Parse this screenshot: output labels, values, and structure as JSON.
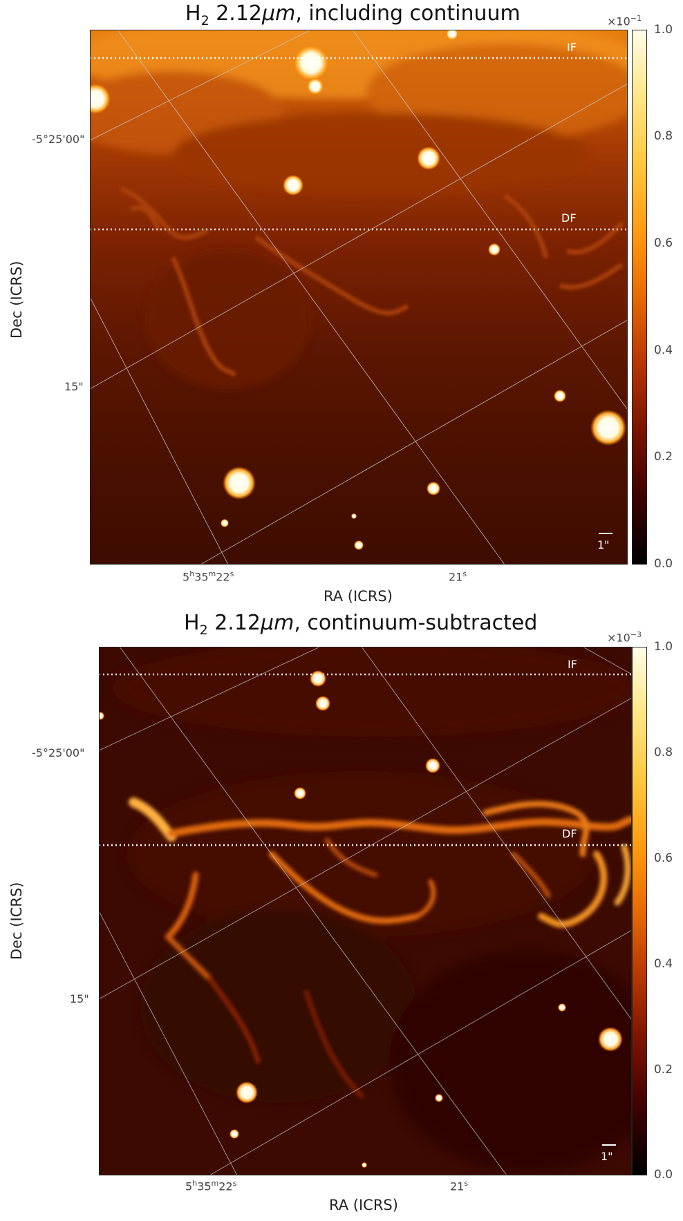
{
  "panels": [
    {
      "title_main": "H",
      "title_sub": "2",
      "title_wave": " 2.12",
      "title_unit": "μm",
      "title_rest": ", including continuum",
      "xlabel": "RA (ICRS)",
      "ylabel": "Dec (ICRS)",
      "ra_ticks": [
        "5h35m22s",
        "21s"
      ],
      "ra_tick_parts": [
        {
          "h": "5",
          "hu": "h",
          "m": "35",
          "mu": "m",
          "s": "22",
          "su": "s"
        },
        {
          "s": "21",
          "su": "s"
        }
      ],
      "dec_ticks": [
        "-5°25'00\"",
        "15\""
      ],
      "colorbar_ticks": [
        "1.0",
        "0.8",
        "0.6",
        "0.4",
        "0.2",
        "0.0"
      ],
      "colorbar_exponent_base": "×10",
      "colorbar_exponent_power": "−1",
      "line_labels": [
        "IF",
        "DF"
      ],
      "scale_bar_label": "1\""
    },
    {
      "title_main": "H",
      "title_sub": "2",
      "title_wave": " 2.12",
      "title_unit": "μm",
      "title_rest": ", continuum-subtracted",
      "xlabel": "RA (ICRS)",
      "ylabel": "Dec (ICRS)",
      "ra_ticks": [
        "5h35m22s",
        "21s"
      ],
      "dec_ticks": [
        "-5°25'00\"",
        "15\""
      ],
      "colorbar_ticks": [
        "1.0",
        "0.8",
        "0.6",
        "0.4",
        "0.2",
        "0.0"
      ],
      "colorbar_exponent_base": "×10",
      "colorbar_exponent_power": "−3",
      "line_labels": [
        "IF",
        "DF"
      ],
      "scale_bar_label": "1\""
    }
  ],
  "colormap": [
    "#000000",
    "#3a0000",
    "#7a1200",
    "#b83800",
    "#e76a00",
    "#ff9a10",
    "#ffc840",
    "#ffe88a",
    "#fffde8"
  ],
  "colors": {
    "grid": "#c8c8c8",
    "marker_line": "#ffffff",
    "frame": "#222222"
  }
}
